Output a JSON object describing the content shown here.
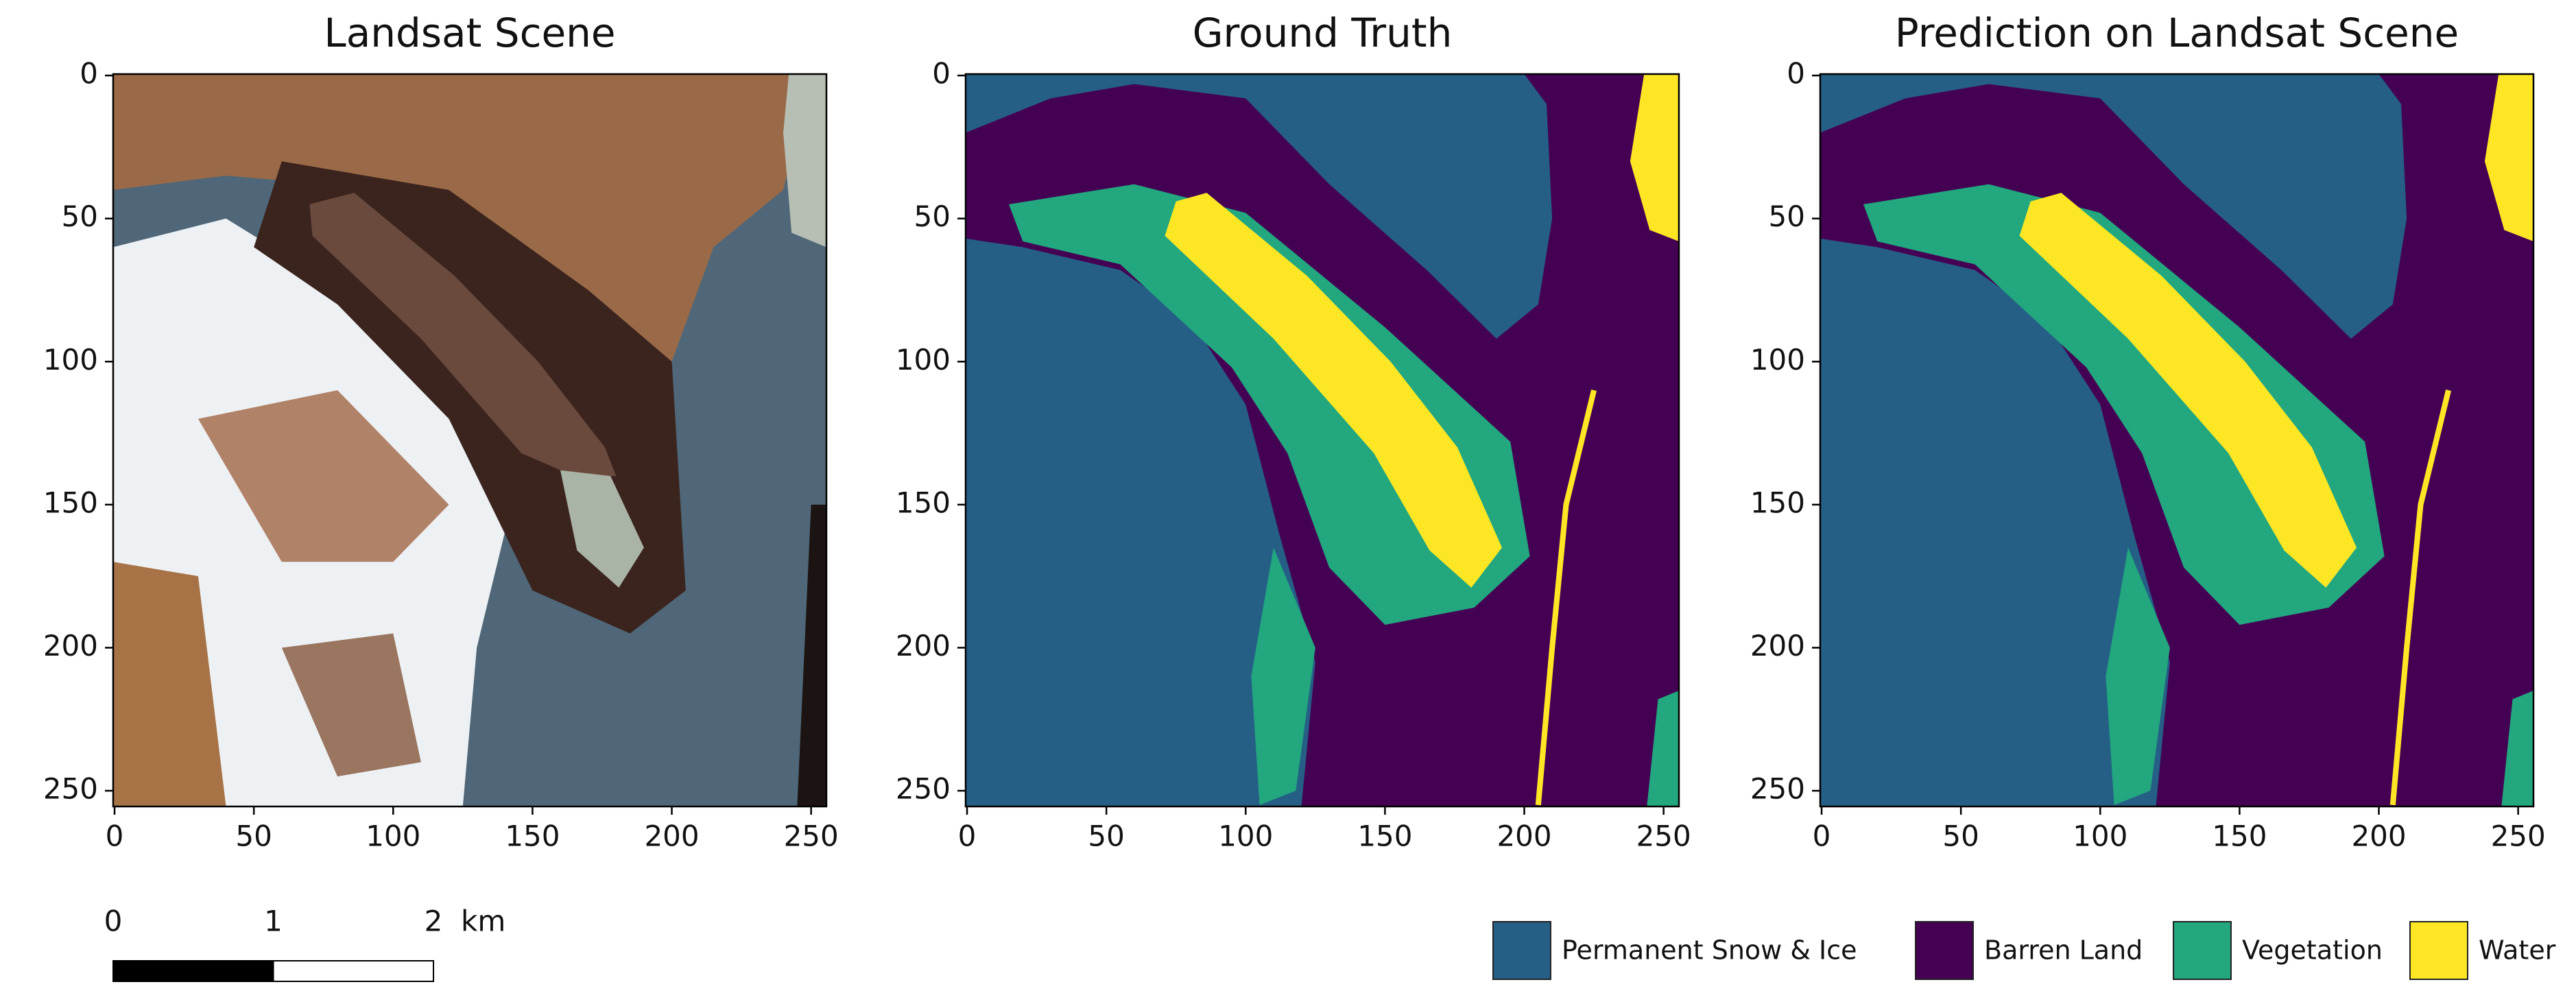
{
  "chart_data": [
    {
      "type": "image",
      "title": "Landsat Scene",
      "xlim": [
        -0.5,
        255.5
      ],
      "ylim": [
        255.5,
        -0.5
      ],
      "xticks": [
        0,
        50,
        100,
        150,
        200,
        250
      ],
      "yticks": [
        0,
        50,
        100,
        150,
        200,
        250
      ]
    },
    {
      "type": "image",
      "title": "Ground Truth",
      "xlim": [
        -0.5,
        255.5
      ],
      "ylim": [
        255.5,
        -0.5
      ],
      "xticks": [
        0,
        50,
        100,
        150,
        200,
        250
      ],
      "yticks": [
        0,
        50,
        100,
        150,
        200,
        250
      ]
    },
    {
      "type": "image",
      "title": "Prediction on Landsat Scene",
      "xlim": [
        -0.5,
        255.5
      ],
      "ylim": [
        255.5,
        -0.5
      ],
      "xticks": [
        0,
        50,
        100,
        150,
        200,
        250
      ],
      "yticks": [
        0,
        50,
        100,
        150,
        200,
        250
      ]
    }
  ],
  "scale_bar": {
    "ticks": [
      0,
      1,
      2
    ],
    "unit": "km"
  },
  "legend": {
    "items": [
      {
        "name": "Permanent Snow & Ice",
        "color": "#255f86"
      },
      {
        "name": "Barren Land",
        "color": "#440154"
      },
      {
        "name": "Vegetation",
        "color": "#22a77e"
      },
      {
        "name": "Water",
        "color": "#fde725"
      }
    ]
  }
}
